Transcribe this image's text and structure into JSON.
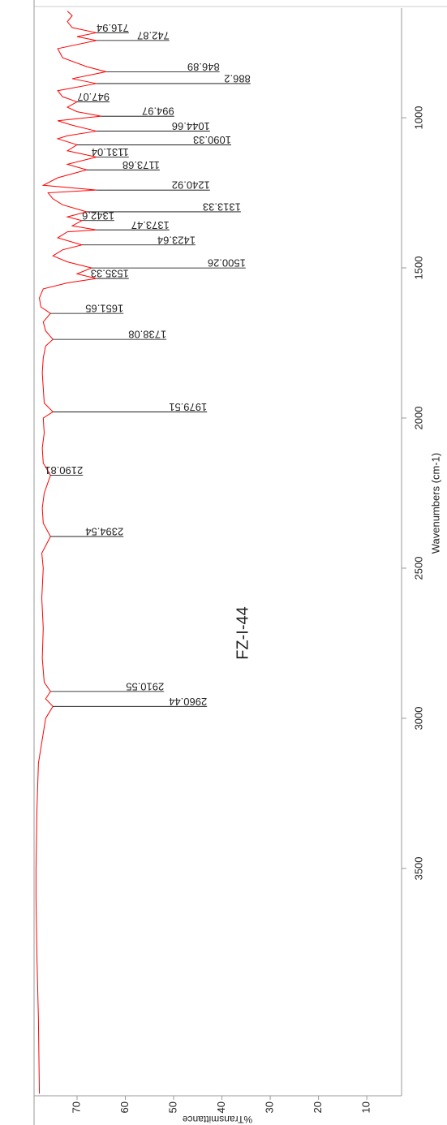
{
  "chart_data": {
    "type": "line",
    "title": "FZ-I-44",
    "xlabel": "Wavenumbers (cm-1)",
    "ylabel": "%Transmittance",
    "xlim": [
      4257,
      635
    ],
    "xticks": [
      3500,
      3000,
      2500,
      2000,
      1500,
      1000
    ],
    "ylim": [
      2.8,
      78.9
    ],
    "yticks": [
      70,
      60,
      50,
      40,
      30,
      20,
      10
    ],
    "series": [
      {
        "color": "#ff0000",
        "x": [
          4250,
          4000,
          3800,
          3600,
          3500,
          3300,
          3150,
          3050,
          3000,
          2960.44,
          2935,
          2910.55,
          2880,
          2800,
          2700,
          2600,
          2500,
          2450,
          2394.54,
          2350,
          2300,
          2250,
          2190.81,
          2150,
          2100,
          2050,
          2000,
          1979.51,
          1950,
          1900,
          1850,
          1800,
          1760,
          1738.08,
          1710,
          1680,
          1651.65,
          1630,
          1600,
          1570,
          1550,
          1535.33,
          1520,
          1500.26,
          1480,
          1460,
          1440,
          1423.64,
          1400,
          1380,
          1373.47,
          1360,
          1342.6,
          1330,
          1313.33,
          1290,
          1270,
          1250,
          1240.92,
          1225,
          1200,
          1173.68,
          1155,
          1131.04,
          1110,
          1090.33,
          1070,
          1060,
          1044.66,
          1025,
          1010,
          994.97,
          980,
          965,
          947.07,
          930,
          910,
          886.2,
          870,
          846.89,
          830,
          800,
          770,
          742.87,
          730,
          716.94,
          700,
          680,
          660,
          645
        ],
        "values": [
          77.8,
          78,
          78.3,
          78.5,
          78.5,
          78.3,
          78,
          77,
          76.5,
          75,
          76.5,
          75.5,
          76.8,
          77.2,
          77,
          77.3,
          77,
          77.3,
          75.5,
          77,
          77.2,
          76.8,
          75.5,
          77,
          77.2,
          76.8,
          77,
          75,
          76.8,
          77,
          77.2,
          77,
          76.5,
          75,
          76.5,
          77,
          75.5,
          77.5,
          77.8,
          77,
          72,
          66,
          70,
          67,
          72,
          75,
          73,
          69,
          74,
          72,
          66,
          71,
          69,
          72,
          68,
          73,
          75,
          76,
          66,
          77,
          74,
          68,
          72,
          66,
          72,
          70,
          74,
          72,
          66,
          71,
          74,
          65,
          70,
          72,
          70,
          73,
          74,
          66,
          71,
          64,
          68,
          73,
          74,
          66,
          70,
          66,
          71,
          72,
          71,
          72
        ]
      }
    ],
    "peaks": {
      "x": [
        716.94,
        742.87,
        846.89,
        886.2,
        947.07,
        994.97,
        1044.66,
        1090.33,
        1131.04,
        1173.68,
        1240.92,
        1313.33,
        1342.6,
        1373.47,
        1423.64,
        1500.26,
        1535.33,
        1651.65,
        1738.08,
        1979.51,
        2190.81,
        2394.54,
        2910.55,
        2960.44
      ],
      "values": [
        66,
        66,
        64,
        66,
        70,
        65,
        66,
        70,
        66,
        68,
        66,
        68,
        69,
        66,
        69,
        67,
        66,
        75.5,
        75,
        75,
        75.5,
        75.5,
        75.5,
        75
      ]
    }
  }
}
